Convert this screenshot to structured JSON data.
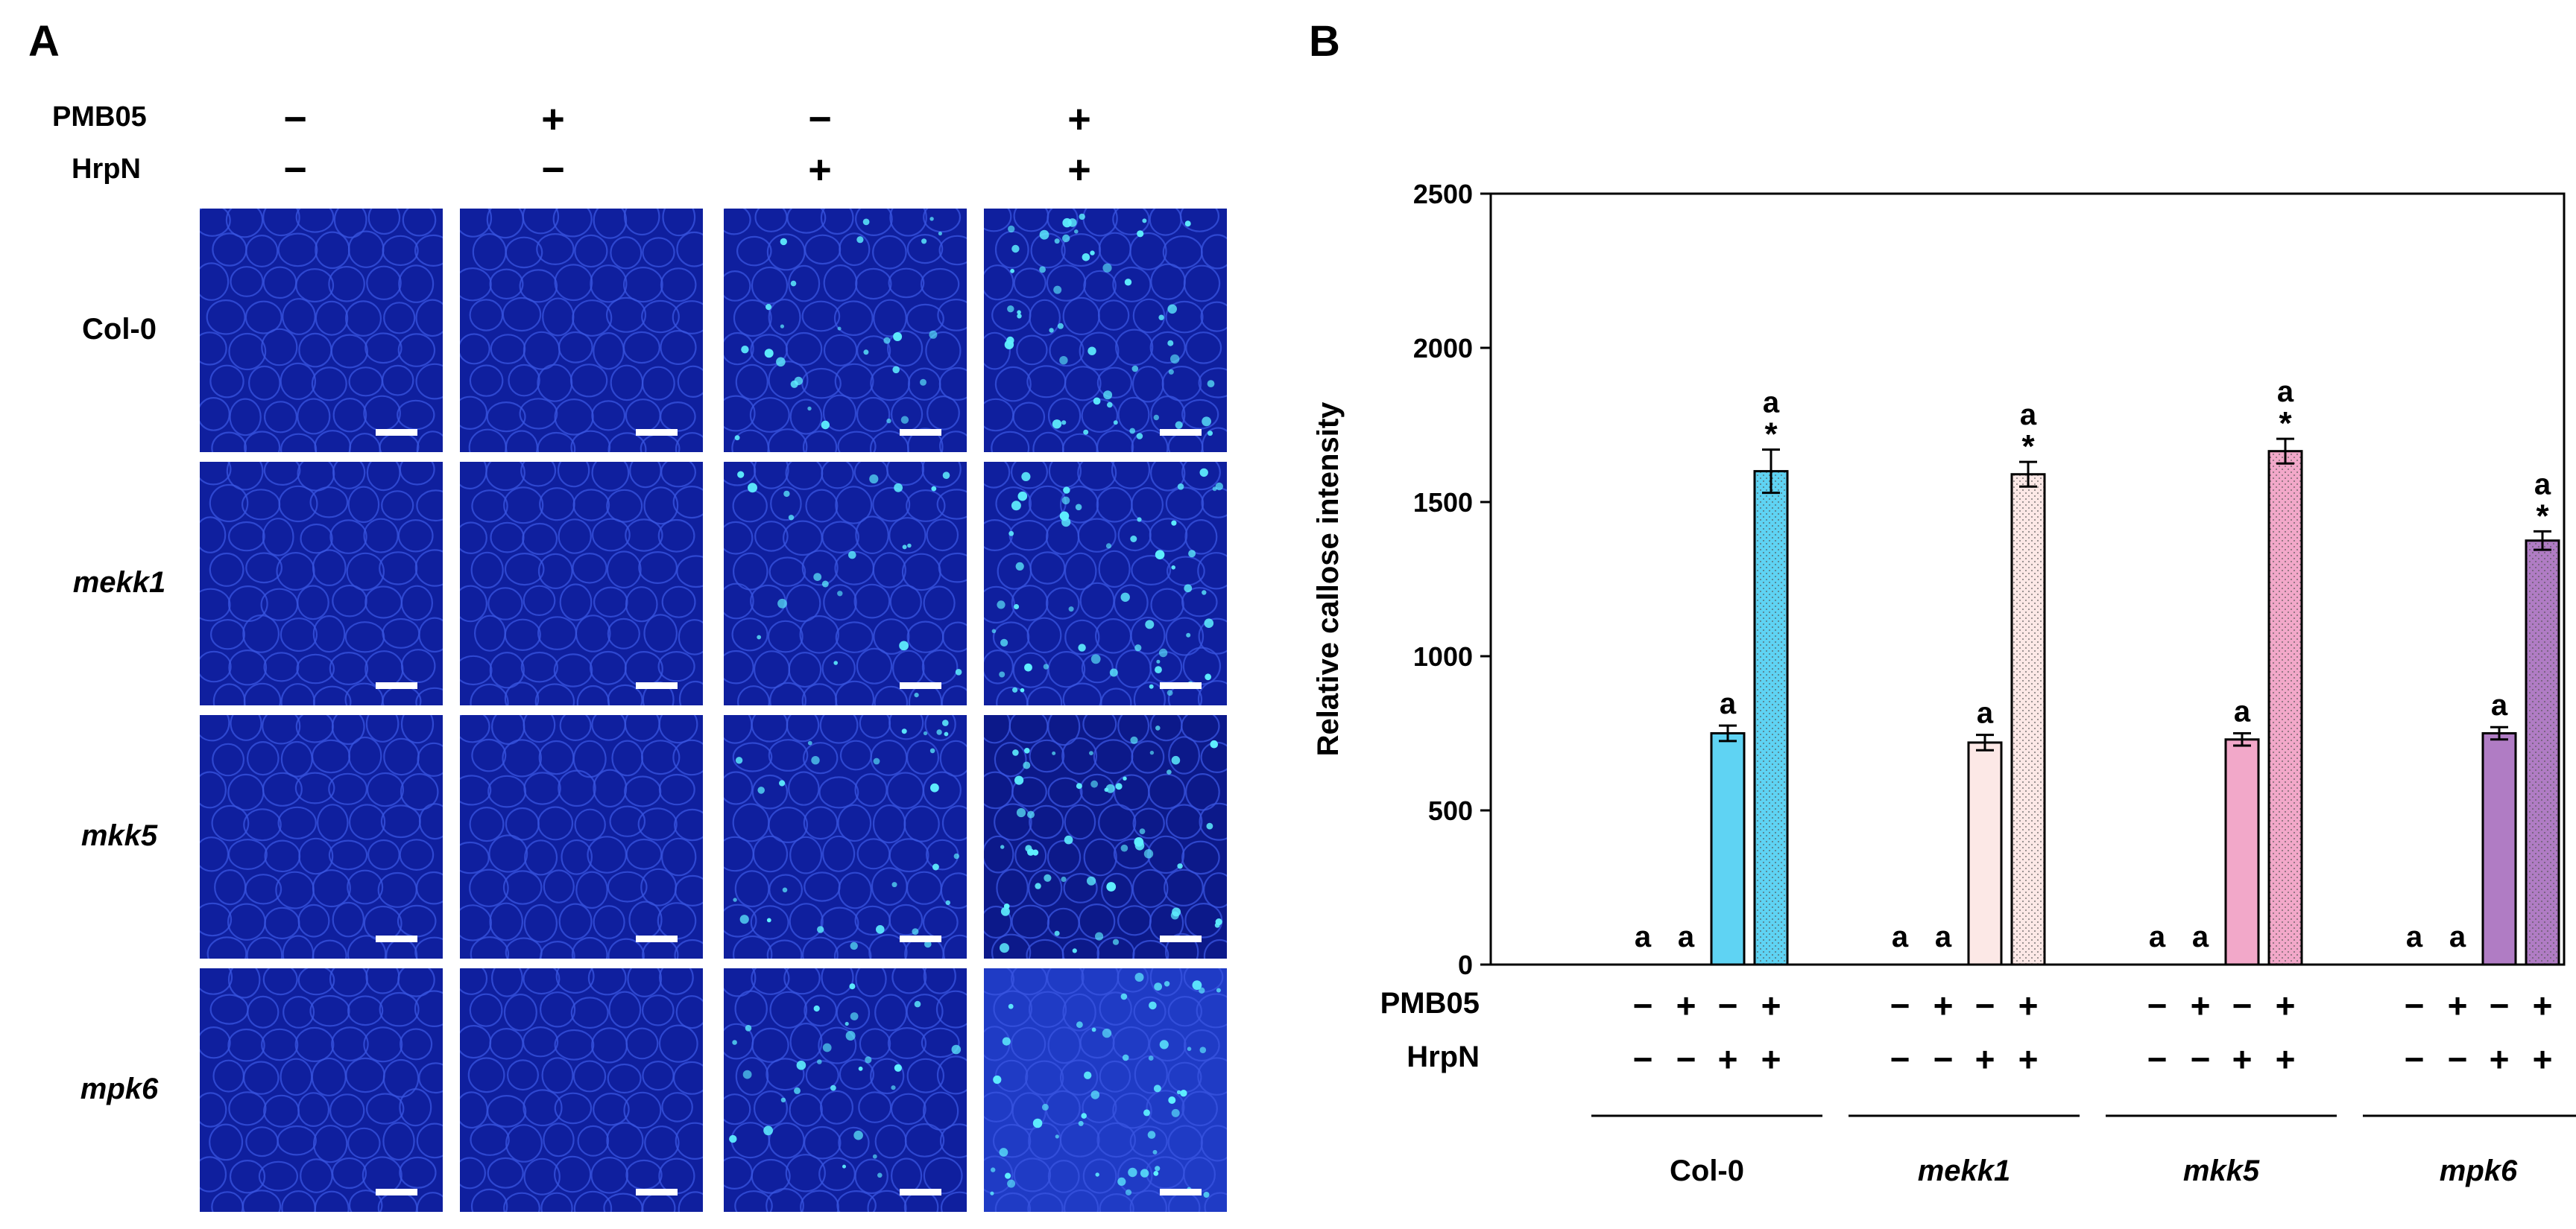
{
  "panel_a": {
    "label": "A",
    "row_keys": {
      "pmb": "PMB05",
      "hrpn": "HrpN"
    },
    "columns": [
      {
        "pmb": "−",
        "hrpn": "−"
      },
      {
        "pmb": "+",
        "hrpn": "−"
      },
      {
        "pmb": "−",
        "hrpn": "+"
      },
      {
        "pmb": "+",
        "hrpn": "+"
      }
    ],
    "rows": [
      {
        "label": "Col-0",
        "italic": false
      },
      {
        "label": "mekk1",
        "italic": true
      },
      {
        "label": "mkk5",
        "italic": true
      },
      {
        "label": "mpk6",
        "italic": true
      }
    ],
    "colors": {
      "background": "#0f1f9e",
      "cell_wall": "#3a56e0",
      "callose": "#5ff0ff"
    }
  },
  "panel_b": {
    "label": "B",
    "treatment_keys": {
      "pmb": "PMB05",
      "hrpn": "HrpN"
    },
    "treatments": [
      {
        "pmb": "−",
        "hrpn": "−"
      },
      {
        "pmb": "+",
        "hrpn": "−"
      },
      {
        "pmb": "−",
        "hrpn": "+"
      },
      {
        "pmb": "+",
        "hrpn": "+"
      }
    ]
  },
  "chart_data": {
    "type": "bar",
    "title": "",
    "xlabel": "",
    "ylabel": "Relative callose intensity",
    "ylim": [
      0,
      2500
    ],
    "yticks": [
      0,
      500,
      1000,
      1500,
      2000,
      2500
    ],
    "grid": false,
    "legend": "none",
    "groups": [
      {
        "name": "Col-0",
        "italic": false,
        "color": "#5fd3f3",
        "values": [
          0,
          0,
          750,
          1600
        ],
        "errors": [
          0,
          0,
          25,
          70
        ],
        "letters": [
          "a",
          "a",
          "a",
          "a"
        ],
        "stars": [
          "",
          "",
          "",
          "*"
        ]
      },
      {
        "name": "mekk1",
        "italic": true,
        "color": "#fce8e6",
        "values": [
          0,
          0,
          720,
          1590
        ],
        "errors": [
          0,
          0,
          25,
          40
        ],
        "letters": [
          "a",
          "a",
          "a",
          "a"
        ],
        "stars": [
          "",
          "",
          "",
          "*"
        ]
      },
      {
        "name": "mkk5",
        "italic": true,
        "color": "#f2a8c9",
        "values": [
          0,
          0,
          730,
          1665
        ],
        "errors": [
          0,
          0,
          20,
          40
        ],
        "letters": [
          "a",
          "a",
          "a",
          "a"
        ],
        "stars": [
          "",
          "",
          "",
          "*"
        ]
      },
      {
        "name": "mpk6",
        "italic": true,
        "color": "#b07cc4",
        "values": [
          0,
          0,
          750,
          1375
        ],
        "errors": [
          0,
          0,
          20,
          30
        ],
        "letters": [
          "a",
          "a",
          "a",
          "a"
        ],
        "stars": [
          "",
          "",
          "",
          "*"
        ]
      }
    ]
  }
}
